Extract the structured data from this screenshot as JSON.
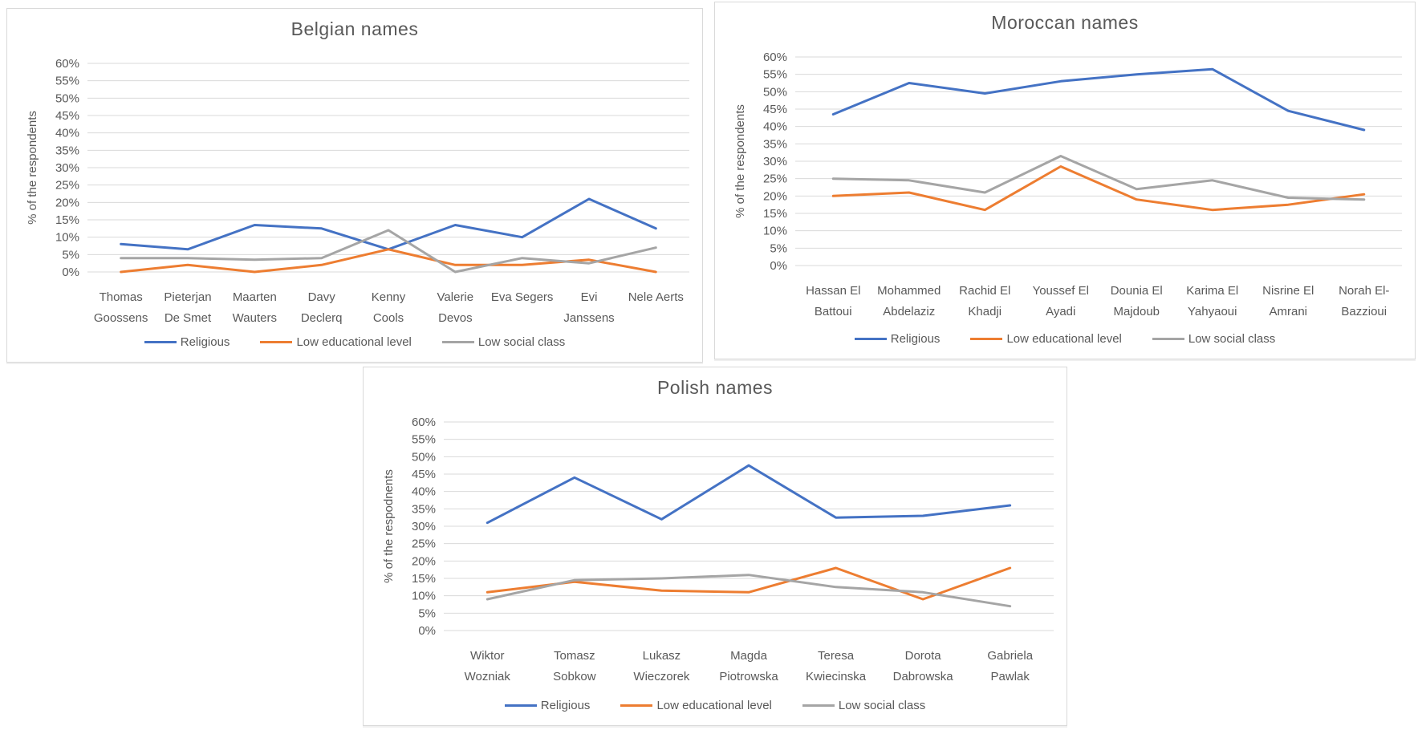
{
  "colors": {
    "accent_blue": "#4472C4",
    "accent_orange": "#ED7D31",
    "accent_gray": "#A5A5A5",
    "grid_line": "#D9D9D9",
    "axis_text": "#595959",
    "title_text": "#595959",
    "panel_border": "#D9D9D9"
  },
  "legend_labels": [
    "Religious",
    "Low educational level",
    "Low social class"
  ],
  "chart_data": [
    {
      "type": "line",
      "title": "Belgian names",
      "ylabel": "% of the respondents",
      "xlabel": "",
      "ylim": [
        0,
        60
      ],
      "ytick_step": 5,
      "ytick_suffix": "%",
      "grid": true,
      "legend_position": "bottom",
      "categories": [
        "Thomas Goossens",
        "Pieterjan De Smet",
        "Maarten Wauters",
        "Davy Declerq",
        "Kenny Cools",
        "Valerie Devos",
        "Eva Segers",
        "Evi Janssens",
        "Nele Aerts"
      ],
      "category_lines": [
        [
          "Thomas",
          "Goossens"
        ],
        [
          "Pieterjan",
          "De Smet"
        ],
        [
          "Maarten",
          "Wauters"
        ],
        [
          "Davy",
          "Declerq"
        ],
        [
          "Kenny",
          "Cools"
        ],
        [
          "Valerie",
          "Devos"
        ],
        [
          "Eva Segers"
        ],
        [
          "Evi",
          "Janssens"
        ],
        [
          "Nele Aerts"
        ]
      ],
      "series": [
        {
          "name": "Religious",
          "color": "#4472C4",
          "values": [
            8,
            6.5,
            13.5,
            12.5,
            6.5,
            13.5,
            10,
            21,
            12.5
          ]
        },
        {
          "name": "Low educational level",
          "color": "#ED7D31",
          "values": [
            0,
            2,
            0,
            2,
            6.5,
            2,
            2,
            3.5,
            0
          ]
        },
        {
          "name": "Low social class",
          "color": "#A5A5A5",
          "values": [
            4,
            4,
            3.5,
            4,
            12,
            0,
            4,
            2.5,
            7
          ]
        }
      ]
    },
    {
      "type": "line",
      "title": "Moroccan names",
      "ylabel": "% of the respondents",
      "xlabel": "",
      "ylim": [
        0,
        60
      ],
      "ytick_step": 5,
      "ytick_suffix": "%",
      "grid": true,
      "legend_position": "bottom",
      "categories": [
        "Hassan El Battoui",
        "Mohammed Abdelaziz",
        "Rachid El Khadji",
        "Youssef El Ayadi",
        "Dounia El Majdoub",
        "Karima El Yahyaoui",
        "Nisrine El Amrani",
        "Norah El-Bazzioui"
      ],
      "category_lines": [
        [
          "Hassan El",
          "Battoui"
        ],
        [
          "Mohammed",
          "Abdelaziz"
        ],
        [
          "Rachid El",
          "Khadji"
        ],
        [
          "Youssef El",
          "Ayadi"
        ],
        [
          "Dounia El",
          "Majdoub"
        ],
        [
          "Karima El",
          "Yahyaoui"
        ],
        [
          "Nisrine El",
          "Amrani"
        ],
        [
          "Norah El-",
          "Bazzioui"
        ]
      ],
      "series": [
        {
          "name": "Religious",
          "color": "#4472C4",
          "values": [
            43.5,
            52.5,
            49.5,
            53,
            55,
            56.5,
            44.5,
            39
          ]
        },
        {
          "name": "Low educational level",
          "color": "#ED7D31",
          "values": [
            20,
            21,
            16,
            28.5,
            19,
            16,
            17.5,
            20.5
          ]
        },
        {
          "name": "Low social class",
          "color": "#A5A5A5",
          "values": [
            25,
            24.5,
            21,
            31.5,
            22,
            24.5,
            19.5,
            19
          ]
        }
      ]
    },
    {
      "type": "line",
      "title": "Polish names",
      "ylabel": "% of the respodnents",
      "xlabel": "",
      "ylim": [
        0,
        60
      ],
      "ytick_step": 5,
      "ytick_suffix": "%",
      "grid": true,
      "legend_position": "bottom",
      "categories": [
        "Wiktor Wozniak",
        "Tomasz Sobkow",
        "Lukasz Wieczorek",
        "Magda Piotrowska",
        "Teresa Kwiecinska",
        "Dorota Dabrowska",
        "Gabriela Pawlak"
      ],
      "category_lines": [
        [
          "Wiktor",
          "Wozniak"
        ],
        [
          "Tomasz",
          "Sobkow"
        ],
        [
          "Lukasz",
          "Wieczorek"
        ],
        [
          "Magda",
          "Piotrowska"
        ],
        [
          "Teresa",
          "Kwiecinska"
        ],
        [
          "Dorota",
          "Dabrowska"
        ],
        [
          "Gabriela",
          "Pawlak"
        ]
      ],
      "series": [
        {
          "name": "Religious",
          "color": "#4472C4",
          "values": [
            31,
            44,
            32,
            47.5,
            32.5,
            33,
            36
          ]
        },
        {
          "name": "Low educational level",
          "color": "#ED7D31",
          "values": [
            11,
            14,
            11.5,
            11,
            18,
            9,
            18
          ]
        },
        {
          "name": "Low social class",
          "color": "#A5A5A5",
          "values": [
            9,
            14.5,
            15,
            16,
            12.5,
            11,
            7
          ]
        }
      ]
    }
  ]
}
